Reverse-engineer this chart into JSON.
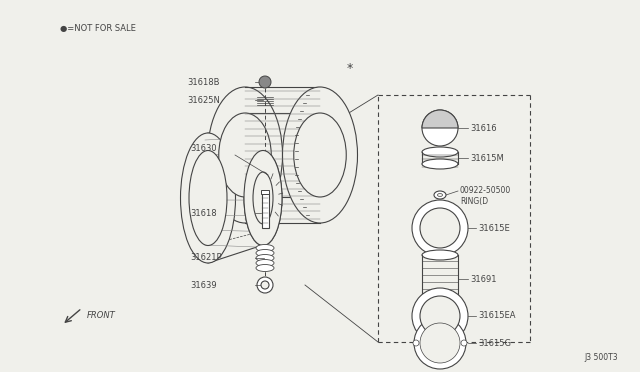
{
  "bg_color": "#f0f0eb",
  "line_color": "#444444",
  "watermark": "J3 500T3",
  "not_for_sale_label": "●=NOT FOR SALE",
  "front_label": "FRONT"
}
